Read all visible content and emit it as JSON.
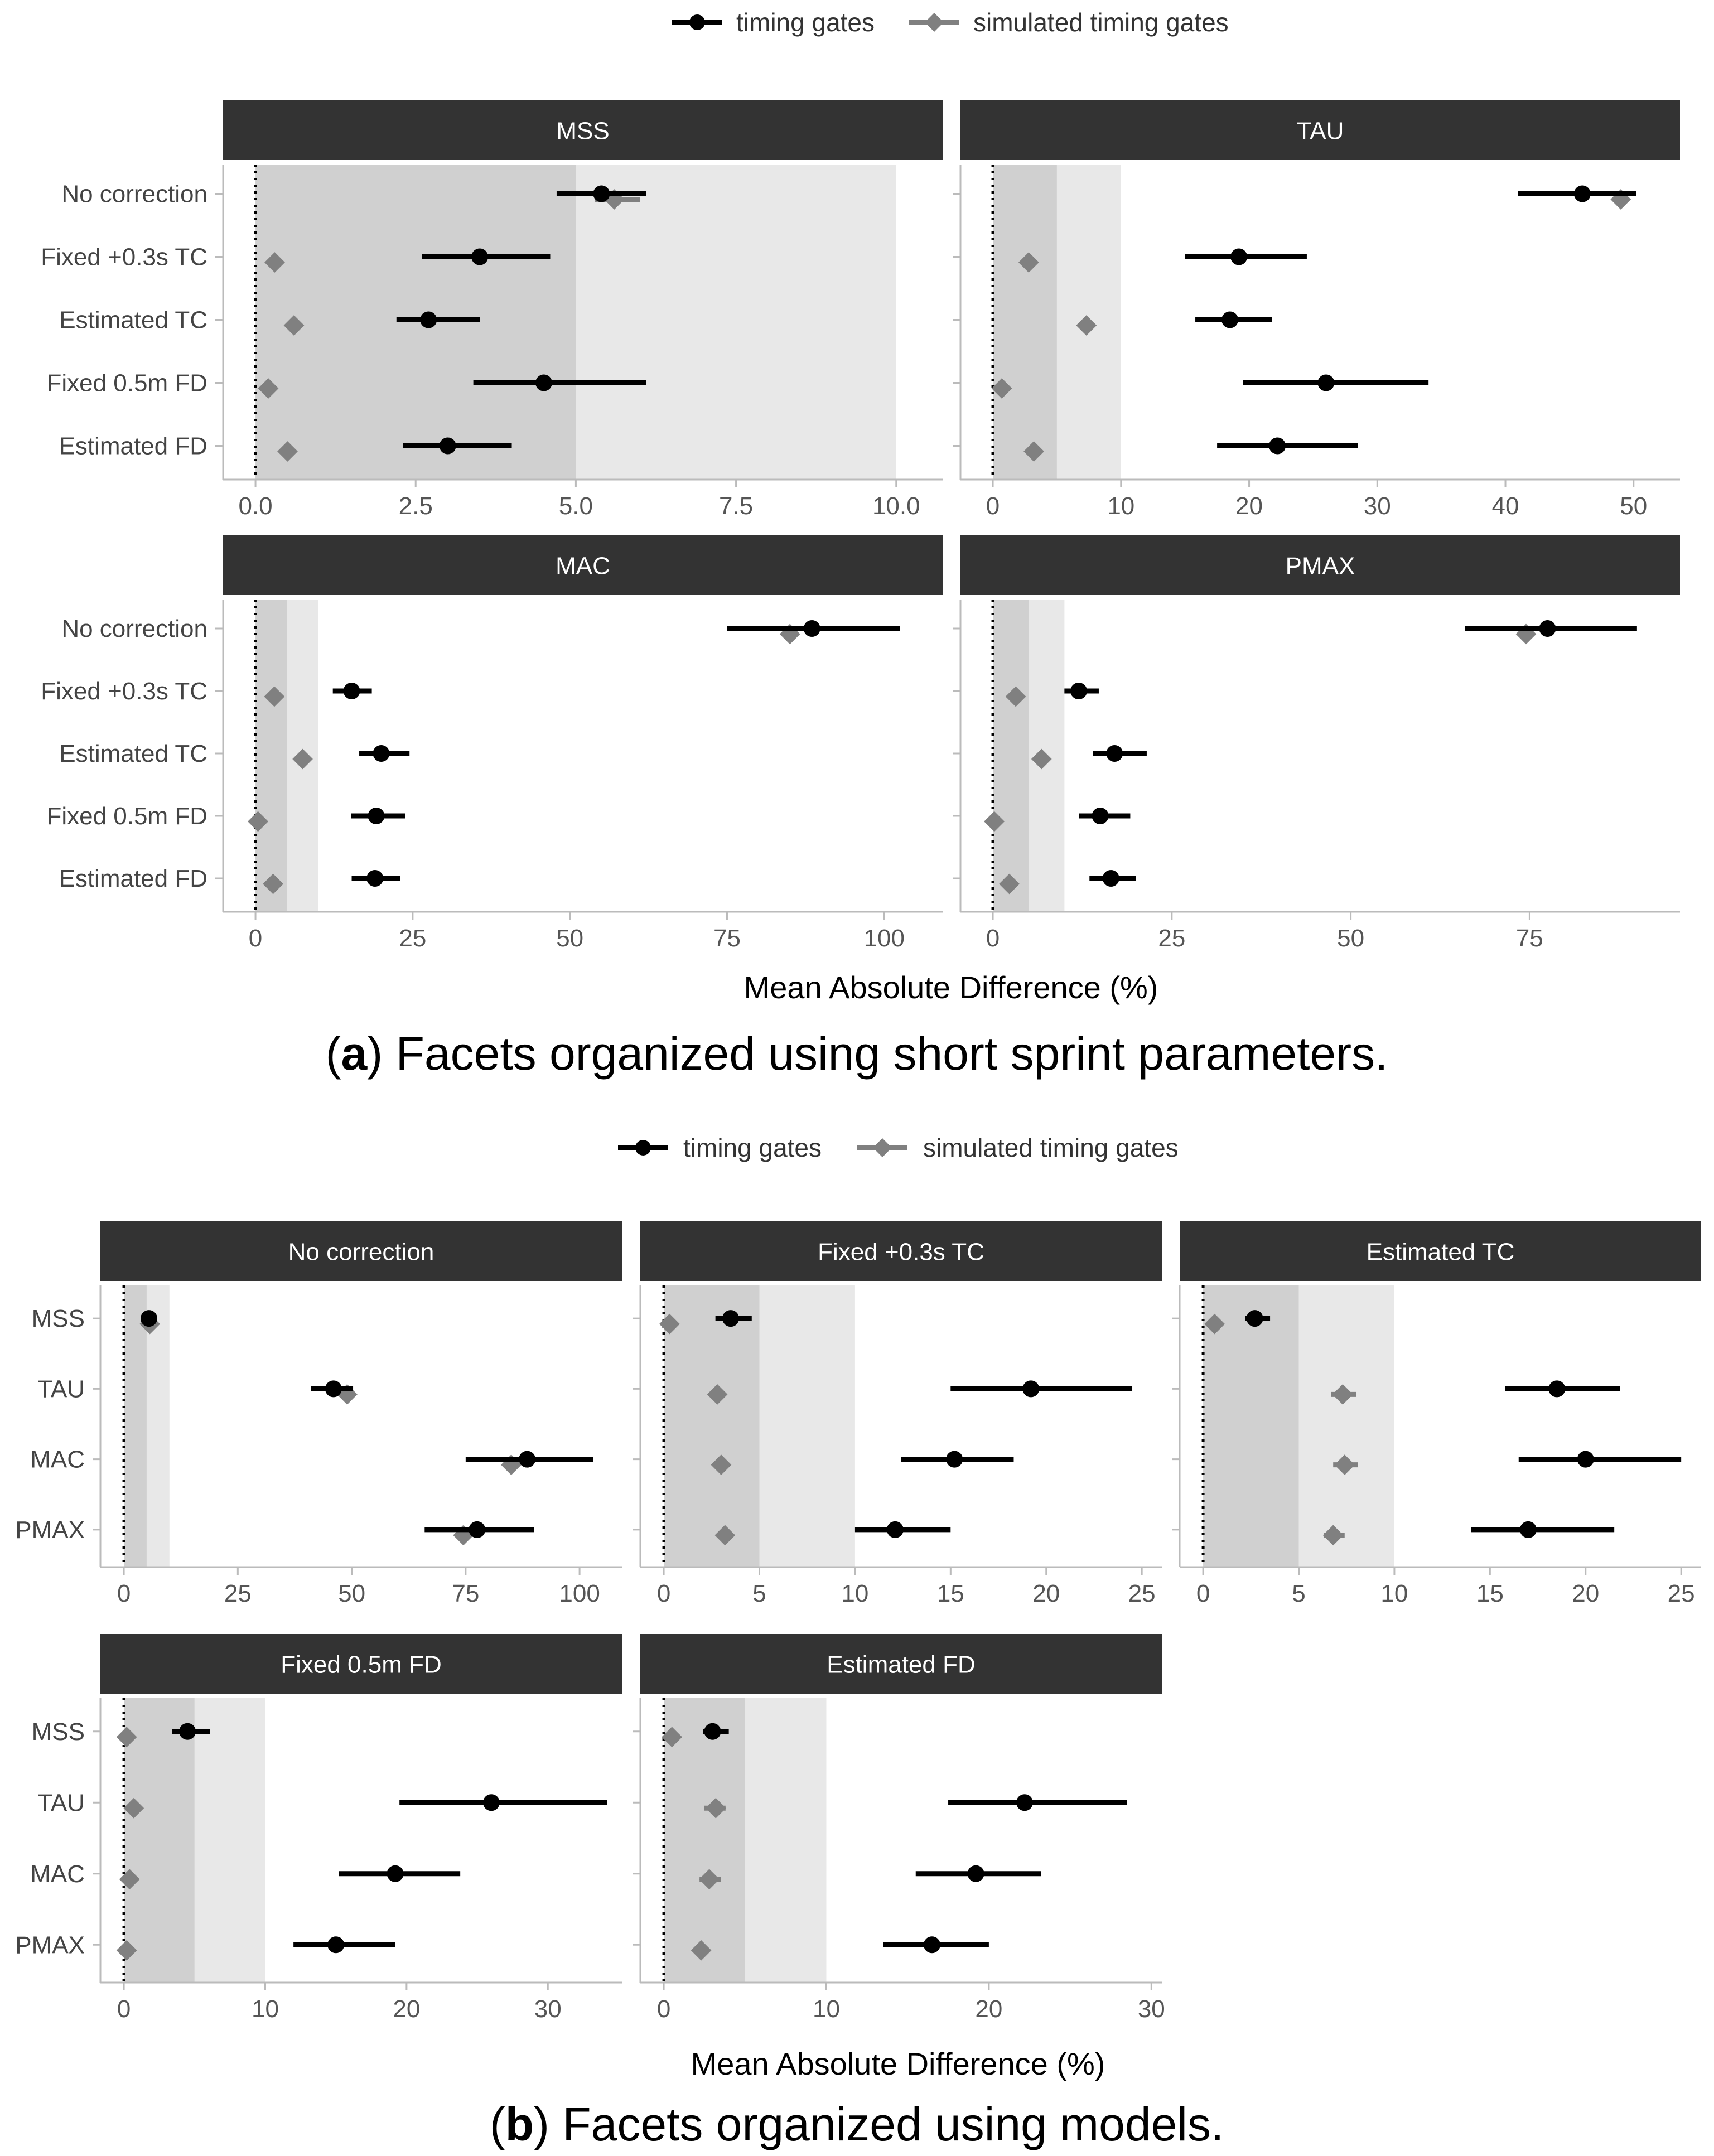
{
  "legend": {
    "timing_gates": "timing gates",
    "simulated_timing_gates": "simulated timing gates"
  },
  "colors": {
    "timing_gates": "#000000",
    "simulated": "#808080",
    "strip": "#333333",
    "band_dark": "#d0d0d0",
    "band_light": "#e8e8e8"
  },
  "caption_a": {
    "letter": "a",
    "open": "(",
    "close": ")",
    "text": " Facets organized using short sprint parameters."
  },
  "caption_b": {
    "letter": "b",
    "open": "(",
    "close": ")",
    "text": " Facets organized using models."
  },
  "xlabel_a": "Mean Absolute Difference (%)",
  "xlabel_b": "Mean Absolute Difference (%)",
  "chart_data": [
    {
      "type": "scatter",
      "title": "MSS",
      "xlabel": "Mean Absolute Difference (%)",
      "xlim": [
        0,
        10.5
      ],
      "xticks": [
        0,
        2.5,
        5,
        7.5,
        10
      ],
      "xtick_labels": [
        "0.0",
        "2.5",
        "5.0",
        "7.5",
        "10.0"
      ],
      "bands": [
        5,
        10
      ],
      "categories": [
        "No correction",
        "Fixed +0.3s TC",
        "Estimated TC",
        "Fixed 0.5m FD",
        "Estimated FD"
      ],
      "series": [
        {
          "name": "timing gates",
          "values": [
            5.4,
            3.5,
            2.7,
            4.5,
            3.0
          ],
          "lo": [
            4.7,
            2.6,
            2.2,
            3.4,
            2.3
          ],
          "hi": [
            6.1,
            4.6,
            3.5,
            6.1,
            4.0
          ]
        },
        {
          "name": "simulated timing gates",
          "values": [
            5.6,
            0.3,
            0.6,
            0.2,
            0.5
          ],
          "lo": [
            5.3,
            null,
            null,
            null,
            null
          ],
          "hi": [
            6.0,
            null,
            null,
            null,
            null
          ]
        }
      ]
    },
    {
      "type": "scatter",
      "title": "TAU",
      "xlabel": "Mean Absolute Difference (%)",
      "xlim": [
        0,
        52.5
      ],
      "xticks": [
        0,
        10,
        20,
        30,
        40,
        50
      ],
      "xtick_labels": [
        "0",
        "10",
        "20",
        "30",
        "40",
        "50"
      ],
      "bands": [
        5,
        10
      ],
      "categories": [
        "No correction",
        "Fixed +0.3s TC",
        "Estimated TC",
        "Fixed 0.5m FD",
        "Estimated FD"
      ],
      "series": [
        {
          "name": "timing gates",
          "values": [
            46.0,
            19.2,
            18.5,
            26.0,
            22.2
          ],
          "lo": [
            41.0,
            15.0,
            15.8,
            19.5,
            17.5
          ],
          "hi": [
            50.2,
            24.5,
            21.8,
            34.0,
            28.5
          ]
        },
        {
          "name": "simulated timing gates",
          "values": [
            49.0,
            2.8,
            7.3,
            0.7,
            3.2
          ],
          "lo": [
            null,
            null,
            null,
            null,
            null
          ],
          "hi": [
            null,
            null,
            null,
            null,
            null
          ]
        }
      ]
    },
    {
      "type": "scatter",
      "title": "MAC",
      "xlabel": "Mean Absolute Difference (%)",
      "xlim": [
        0,
        107
      ],
      "xticks": [
        0,
        25,
        50,
        75,
        100
      ],
      "xtick_labels": [
        "0",
        "25",
        "50",
        "75",
        "100"
      ],
      "bands": [
        5,
        10
      ],
      "categories": [
        "No correction",
        "Fixed +0.3s TC",
        "Estimated TC",
        "Fixed 0.5m FD",
        "Estimated FD"
      ],
      "series": [
        {
          "name": "timing gates",
          "values": [
            88.5,
            15.3,
            20.0,
            19.2,
            19.0
          ],
          "lo": [
            75.0,
            12.3,
            16.5,
            15.2,
            15.3
          ],
          "hi": [
            102.5,
            18.5,
            24.5,
            23.8,
            23.0
          ]
        },
        {
          "name": "simulated timing gates",
          "values": [
            85.0,
            3.0,
            7.5,
            0.4,
            2.8
          ],
          "lo": [
            null,
            null,
            null,
            null,
            null
          ],
          "hi": [
            null,
            null,
            null,
            null,
            null
          ]
        }
      ]
    },
    {
      "type": "scatter",
      "title": "PMAX",
      "xlabel": "Mean Absolute Difference (%)",
      "xlim": [
        0,
        94
      ],
      "xticks": [
        0,
        25,
        50,
        75
      ],
      "xtick_labels": [
        "0",
        "25",
        "50",
        "75"
      ],
      "bands": [
        5,
        10
      ],
      "categories": [
        "No correction",
        "Fixed +0.3s TC",
        "Estimated TC",
        "Fixed 0.5m FD",
        "Estimated FD"
      ],
      "series": [
        {
          "name": "timing gates",
          "values": [
            77.5,
            12.0,
            17.0,
            15.0,
            16.5
          ],
          "lo": [
            66.0,
            10.0,
            14.0,
            12.0,
            13.5
          ],
          "hi": [
            90.0,
            14.8,
            21.5,
            19.2,
            20.0
          ]
        },
        {
          "name": "simulated timing gates",
          "values": [
            74.5,
            3.2,
            6.8,
            0.2,
            2.3
          ],
          "lo": [
            null,
            null,
            null,
            null,
            null
          ],
          "hi": [
            null,
            null,
            null,
            null,
            null
          ]
        }
      ]
    },
    {
      "type": "scatter",
      "title": "No correction",
      "xlabel": "Mean Absolute Difference (%)",
      "xlim": [
        0,
        107
      ],
      "xticks": [
        0,
        25,
        50,
        75,
        100
      ],
      "xtick_labels": [
        "0",
        "25",
        "50",
        "75",
        "100"
      ],
      "bands": [
        5,
        10
      ],
      "categories": [
        "MSS",
        "TAU",
        "MAC",
        "PMAX"
      ],
      "series": [
        {
          "name": "timing gates",
          "values": [
            5.5,
            46.0,
            88.5,
            77.5
          ],
          "lo": [
            4.8,
            41.0,
            75.0,
            66.0
          ],
          "hi": [
            6.2,
            50.3,
            103.0,
            90.0
          ]
        },
        {
          "name": "simulated timing gates",
          "values": [
            5.7,
            49.0,
            85.0,
            74.5
          ],
          "lo": [
            null,
            null,
            null,
            null
          ],
          "hi": [
            null,
            null,
            null,
            null
          ]
        }
      ]
    },
    {
      "type": "scatter",
      "title": "Fixed +0.3s TC",
      "xlabel": "Mean Absolute Difference (%)",
      "xlim": [
        0,
        25.5
      ],
      "xticks": [
        0,
        5,
        10,
        15,
        20,
        25
      ],
      "xtick_labels": [
        "0",
        "5",
        "10",
        "15",
        "20",
        "25"
      ],
      "bands": [
        5,
        10
      ],
      "categories": [
        "MSS",
        "TAU",
        "MAC",
        "PMAX"
      ],
      "series": [
        {
          "name": "timing gates",
          "values": [
            3.5,
            19.2,
            15.2,
            12.1
          ],
          "lo": [
            2.7,
            15.0,
            12.4,
            10.0
          ],
          "hi": [
            4.6,
            24.5,
            18.3,
            15.0
          ]
        },
        {
          "name": "simulated timing gates",
          "values": [
            0.3,
            2.8,
            3.0,
            3.2
          ],
          "lo": [
            null,
            null,
            null,
            null
          ],
          "hi": [
            null,
            null,
            null,
            null
          ]
        }
      ]
    },
    {
      "type": "scatter",
      "title": "Estimated TC",
      "xlabel": "Mean Absolute Difference (%)",
      "xlim": [
        0,
        25.5
      ],
      "xticks": [
        0,
        5,
        10,
        15,
        20,
        25
      ],
      "xtick_labels": [
        "0",
        "5",
        "10",
        "15",
        "20",
        "25"
      ],
      "bands": [
        5,
        10
      ],
      "categories": [
        "MSS",
        "TAU",
        "MAC",
        "PMAX"
      ],
      "series": [
        {
          "name": "timing gates",
          "values": [
            2.7,
            18.5,
            20.0,
            17.0
          ],
          "lo": [
            2.2,
            15.8,
            16.5,
            14.0
          ],
          "hi": [
            3.5,
            21.8,
            25.0,
            21.5
          ]
        },
        {
          "name": "simulated timing gates",
          "values": [
            0.6,
            7.3,
            7.4,
            6.8
          ],
          "lo": [
            null,
            6.7,
            6.8,
            6.3
          ],
          "hi": [
            null,
            8.0,
            8.1,
            7.4
          ]
        }
      ]
    },
    {
      "type": "scatter",
      "title": "Fixed 0.5m FD",
      "xlabel": "Mean Absolute Difference (%)",
      "xlim": [
        0,
        34.5
      ],
      "xticks": [
        0,
        10,
        20,
        30
      ],
      "xtick_labels": [
        "0",
        "10",
        "20",
        "30"
      ],
      "bands": [
        5,
        10
      ],
      "categories": [
        "MSS",
        "TAU",
        "MAC",
        "PMAX"
      ],
      "series": [
        {
          "name": "timing gates",
          "values": [
            4.5,
            26.0,
            19.2,
            15.0
          ],
          "lo": [
            3.4,
            19.5,
            15.2,
            12.0
          ],
          "hi": [
            6.1,
            34.2,
            23.8,
            19.2
          ]
        },
        {
          "name": "simulated timing gates",
          "values": [
            0.2,
            0.7,
            0.4,
            0.2
          ],
          "lo": [
            null,
            null,
            null,
            null
          ],
          "hi": [
            null,
            null,
            null,
            null
          ]
        }
      ]
    },
    {
      "type": "scatter",
      "title": "Estimated FD",
      "xlabel": "Mean Absolute Difference (%)",
      "xlim": [
        0,
        30
      ],
      "xticks": [
        0,
        10,
        20,
        30
      ],
      "xtick_labels": [
        "0",
        "10",
        "20",
        "30"
      ],
      "bands": [
        5,
        10
      ],
      "categories": [
        "MSS",
        "TAU",
        "MAC",
        "PMAX"
      ],
      "series": [
        {
          "name": "timing gates",
          "values": [
            3.0,
            22.2,
            19.2,
            16.5
          ],
          "lo": [
            2.4,
            17.5,
            15.5,
            13.5
          ],
          "hi": [
            4.0,
            28.5,
            23.2,
            20.0
          ]
        },
        {
          "name": "simulated timing gates",
          "values": [
            0.5,
            3.2,
            2.8,
            2.3
          ],
          "lo": [
            null,
            2.5,
            2.2,
            null
          ],
          "hi": [
            null,
            3.8,
            3.5,
            null
          ]
        }
      ]
    }
  ]
}
